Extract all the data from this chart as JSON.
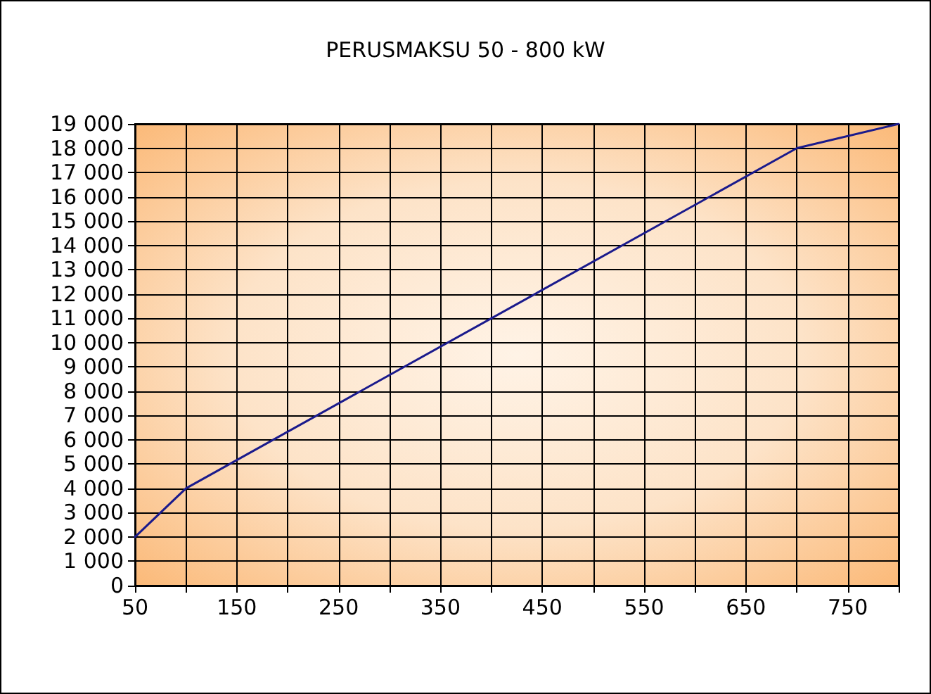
{
  "chart_data": {
    "type": "line",
    "title": "PERUSMAKSU 50 - 800 kW",
    "x": [
      50,
      100,
      700,
      800
    ],
    "series": [
      {
        "color": "#1a1a8c",
        "values": [
          2000,
          4000,
          18000,
          19000
        ]
      }
    ],
    "xlim": [
      50,
      800
    ],
    "xticks": [
      50,
      {
        "value": 100,
        "label": null
      },
      150,
      {
        "value": 200,
        "label": null
      },
      250,
      {
        "value": 300,
        "label": null
      },
      350,
      {
        "value": 400,
        "label": null
      },
      450,
      {
        "value": 500,
        "label": null
      },
      550,
      {
        "value": 600,
        "label": null
      },
      650,
      {
        "value": 700,
        "label": null
      },
      750,
      {
        "value": 800,
        "label": null
      }
    ],
    "ylim": [
      0,
      19000
    ],
    "yticks": [
      0,
      {
        "value": 1000,
        "label": "1 000"
      },
      {
        "value": 2000,
        "label": "2 000"
      },
      {
        "value": 3000,
        "label": "3 000"
      },
      {
        "value": 4000,
        "label": "4 000"
      },
      {
        "value": 5000,
        "label": "5 000"
      },
      {
        "value": 6000,
        "label": "6 000"
      },
      {
        "value": 7000,
        "label": "7 000"
      },
      {
        "value": 8000,
        "label": "8 000"
      },
      {
        "value": 9000,
        "label": "9 000"
      },
      {
        "value": 10000,
        "label": "10 000"
      },
      {
        "value": 11000,
        "label": "11 000"
      },
      {
        "value": 12000,
        "label": "12 000"
      },
      {
        "value": 13000,
        "label": "13 000"
      },
      {
        "value": 14000,
        "label": "14 000"
      },
      {
        "value": 15000,
        "label": "15 000"
      },
      {
        "value": 16000,
        "label": "16 000"
      },
      {
        "value": 17000,
        "label": "17 000"
      },
      {
        "value": 18000,
        "label": "18 000"
      },
      {
        "value": 19000,
        "label": "19 000"
      }
    ],
    "grid": true,
    "marker": "none",
    "line_style": "solid"
  }
}
